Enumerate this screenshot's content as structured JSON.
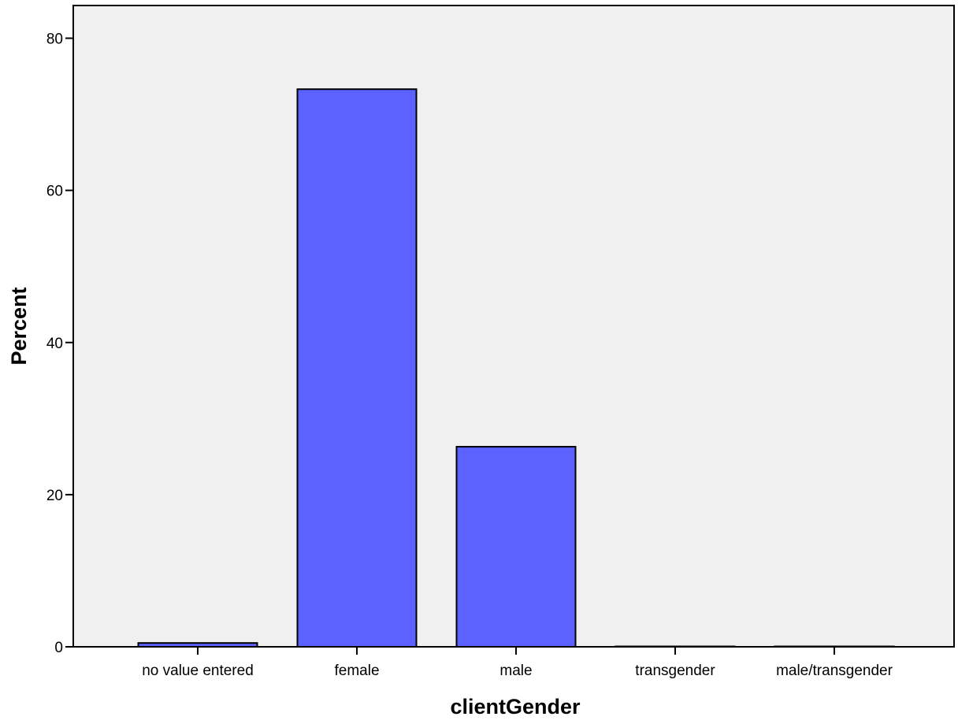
{
  "chart_data": {
    "type": "bar",
    "title": "",
    "xlabel": "clientGender",
    "ylabel": "Percent",
    "categories": [
      "no value entered",
      "female",
      "male",
      "transgender",
      "male/transgender"
    ],
    "values": [
      0.5,
      73.3,
      26.3,
      0.02,
      0.02
    ],
    "ylim": [
      0,
      84.3
    ],
    "yticks": [
      0,
      20,
      40,
      60,
      80
    ],
    "ytick_labels": [
      "0",
      "20",
      "40",
      "60",
      "80"
    ],
    "grid": false,
    "legend": "none",
    "colors": {
      "bar_fill": "#5b62ff",
      "bar_stroke": "#000000",
      "plot_background": "#f0f0f0",
      "axis": "#000000"
    }
  }
}
